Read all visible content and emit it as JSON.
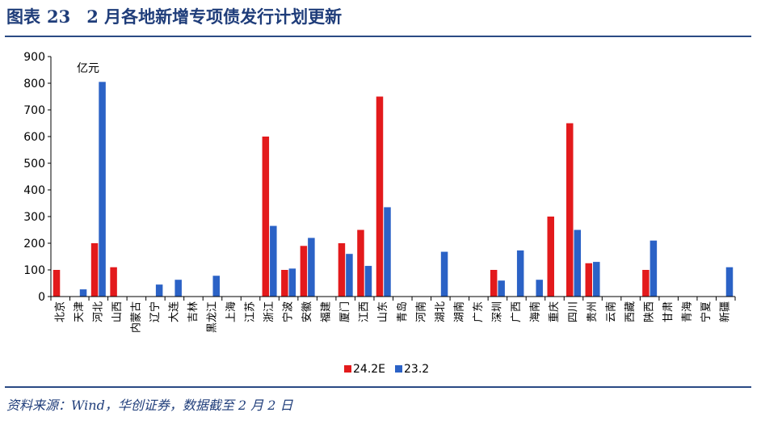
{
  "figure": {
    "label": "图表",
    "number": "23",
    "title": "2 月各地新增专项债发行计划更新"
  },
  "source": {
    "text": "资料来源：Wind，华创证券，数据截至 2 月 2 日"
  },
  "chart_data": {
    "type": "bar",
    "unit_label": "亿元",
    "ylim": [
      0,
      900
    ],
    "yticks": [
      0,
      100,
      200,
      300,
      400,
      500,
      600,
      700,
      800,
      900
    ],
    "grid": false,
    "legend_position": "bottom-center",
    "categories": [
      "北京",
      "天津",
      "河北",
      "山西",
      "内蒙古",
      "辽宁",
      "大连",
      "吉林",
      "黑龙江",
      "上海",
      "江苏",
      "浙江",
      "宁波",
      "安徽",
      "福建",
      "厦门",
      "江西",
      "山东",
      "青岛",
      "河南",
      "湖北",
      "湖南",
      "广东",
      "深圳",
      "广西",
      "海南",
      "重庆",
      "四川",
      "贵州",
      "云南",
      "西藏",
      "陕西",
      "甘肃",
      "青海",
      "宁夏",
      "新疆"
    ],
    "series": [
      {
        "name": "24.2E",
        "color": "#e31a1c",
        "values": [
          100,
          0,
          200,
          110,
          0,
          0,
          0,
          0,
          0,
          0,
          0,
          600,
          100,
          190,
          0,
          200,
          250,
          750,
          0,
          0,
          0,
          0,
          0,
          100,
          0,
          0,
          300,
          650,
          125,
          0,
          0,
          100,
          0,
          0,
          0,
          0
        ]
      },
      {
        "name": "23.2",
        "color": "#2b62c6",
        "values": [
          0,
          27,
          805,
          0,
          0,
          45,
          63,
          0,
          78,
          0,
          0,
          265,
          105,
          220,
          0,
          160,
          115,
          335,
          0,
          0,
          168,
          0,
          0,
          60,
          173,
          63,
          0,
          250,
          130,
          0,
          0,
          210,
          0,
          0,
          0,
          110
        ]
      }
    ]
  }
}
